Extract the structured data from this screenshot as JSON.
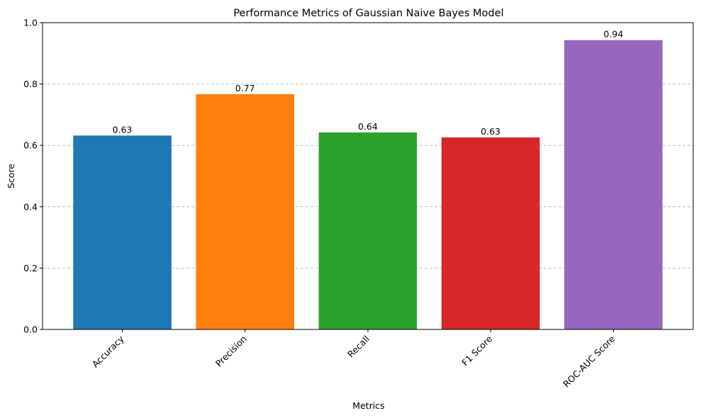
{
  "chart_data": {
    "type": "bar",
    "title": "Performance Metrics of Gaussian Naive Bayes Model",
    "xlabel": "Metrics",
    "ylabel": "Score",
    "categories": [
      "Accuracy",
      "Precision",
      "Recall",
      "F1 Score",
      "ROC-AUC Score"
    ],
    "values": [
      0.632,
      0.767,
      0.642,
      0.626,
      0.943
    ],
    "value_labels": [
      "0.63",
      "0.77",
      "0.64",
      "0.63",
      "0.94"
    ],
    "colors": [
      "#1f77b4",
      "#ff7f0e",
      "#2ca02c",
      "#d62728",
      "#9467bd"
    ],
    "ylim": [
      0,
      1.0
    ],
    "yticks": [
      0.0,
      0.2,
      0.4,
      0.6,
      0.8,
      1.0
    ],
    "ytick_labels": [
      "0.0",
      "0.2",
      "0.4",
      "0.6",
      "0.8",
      "1.0"
    ],
    "grid": "y-dashed",
    "legend": "none",
    "xtick_rotation_deg": 45
  }
}
